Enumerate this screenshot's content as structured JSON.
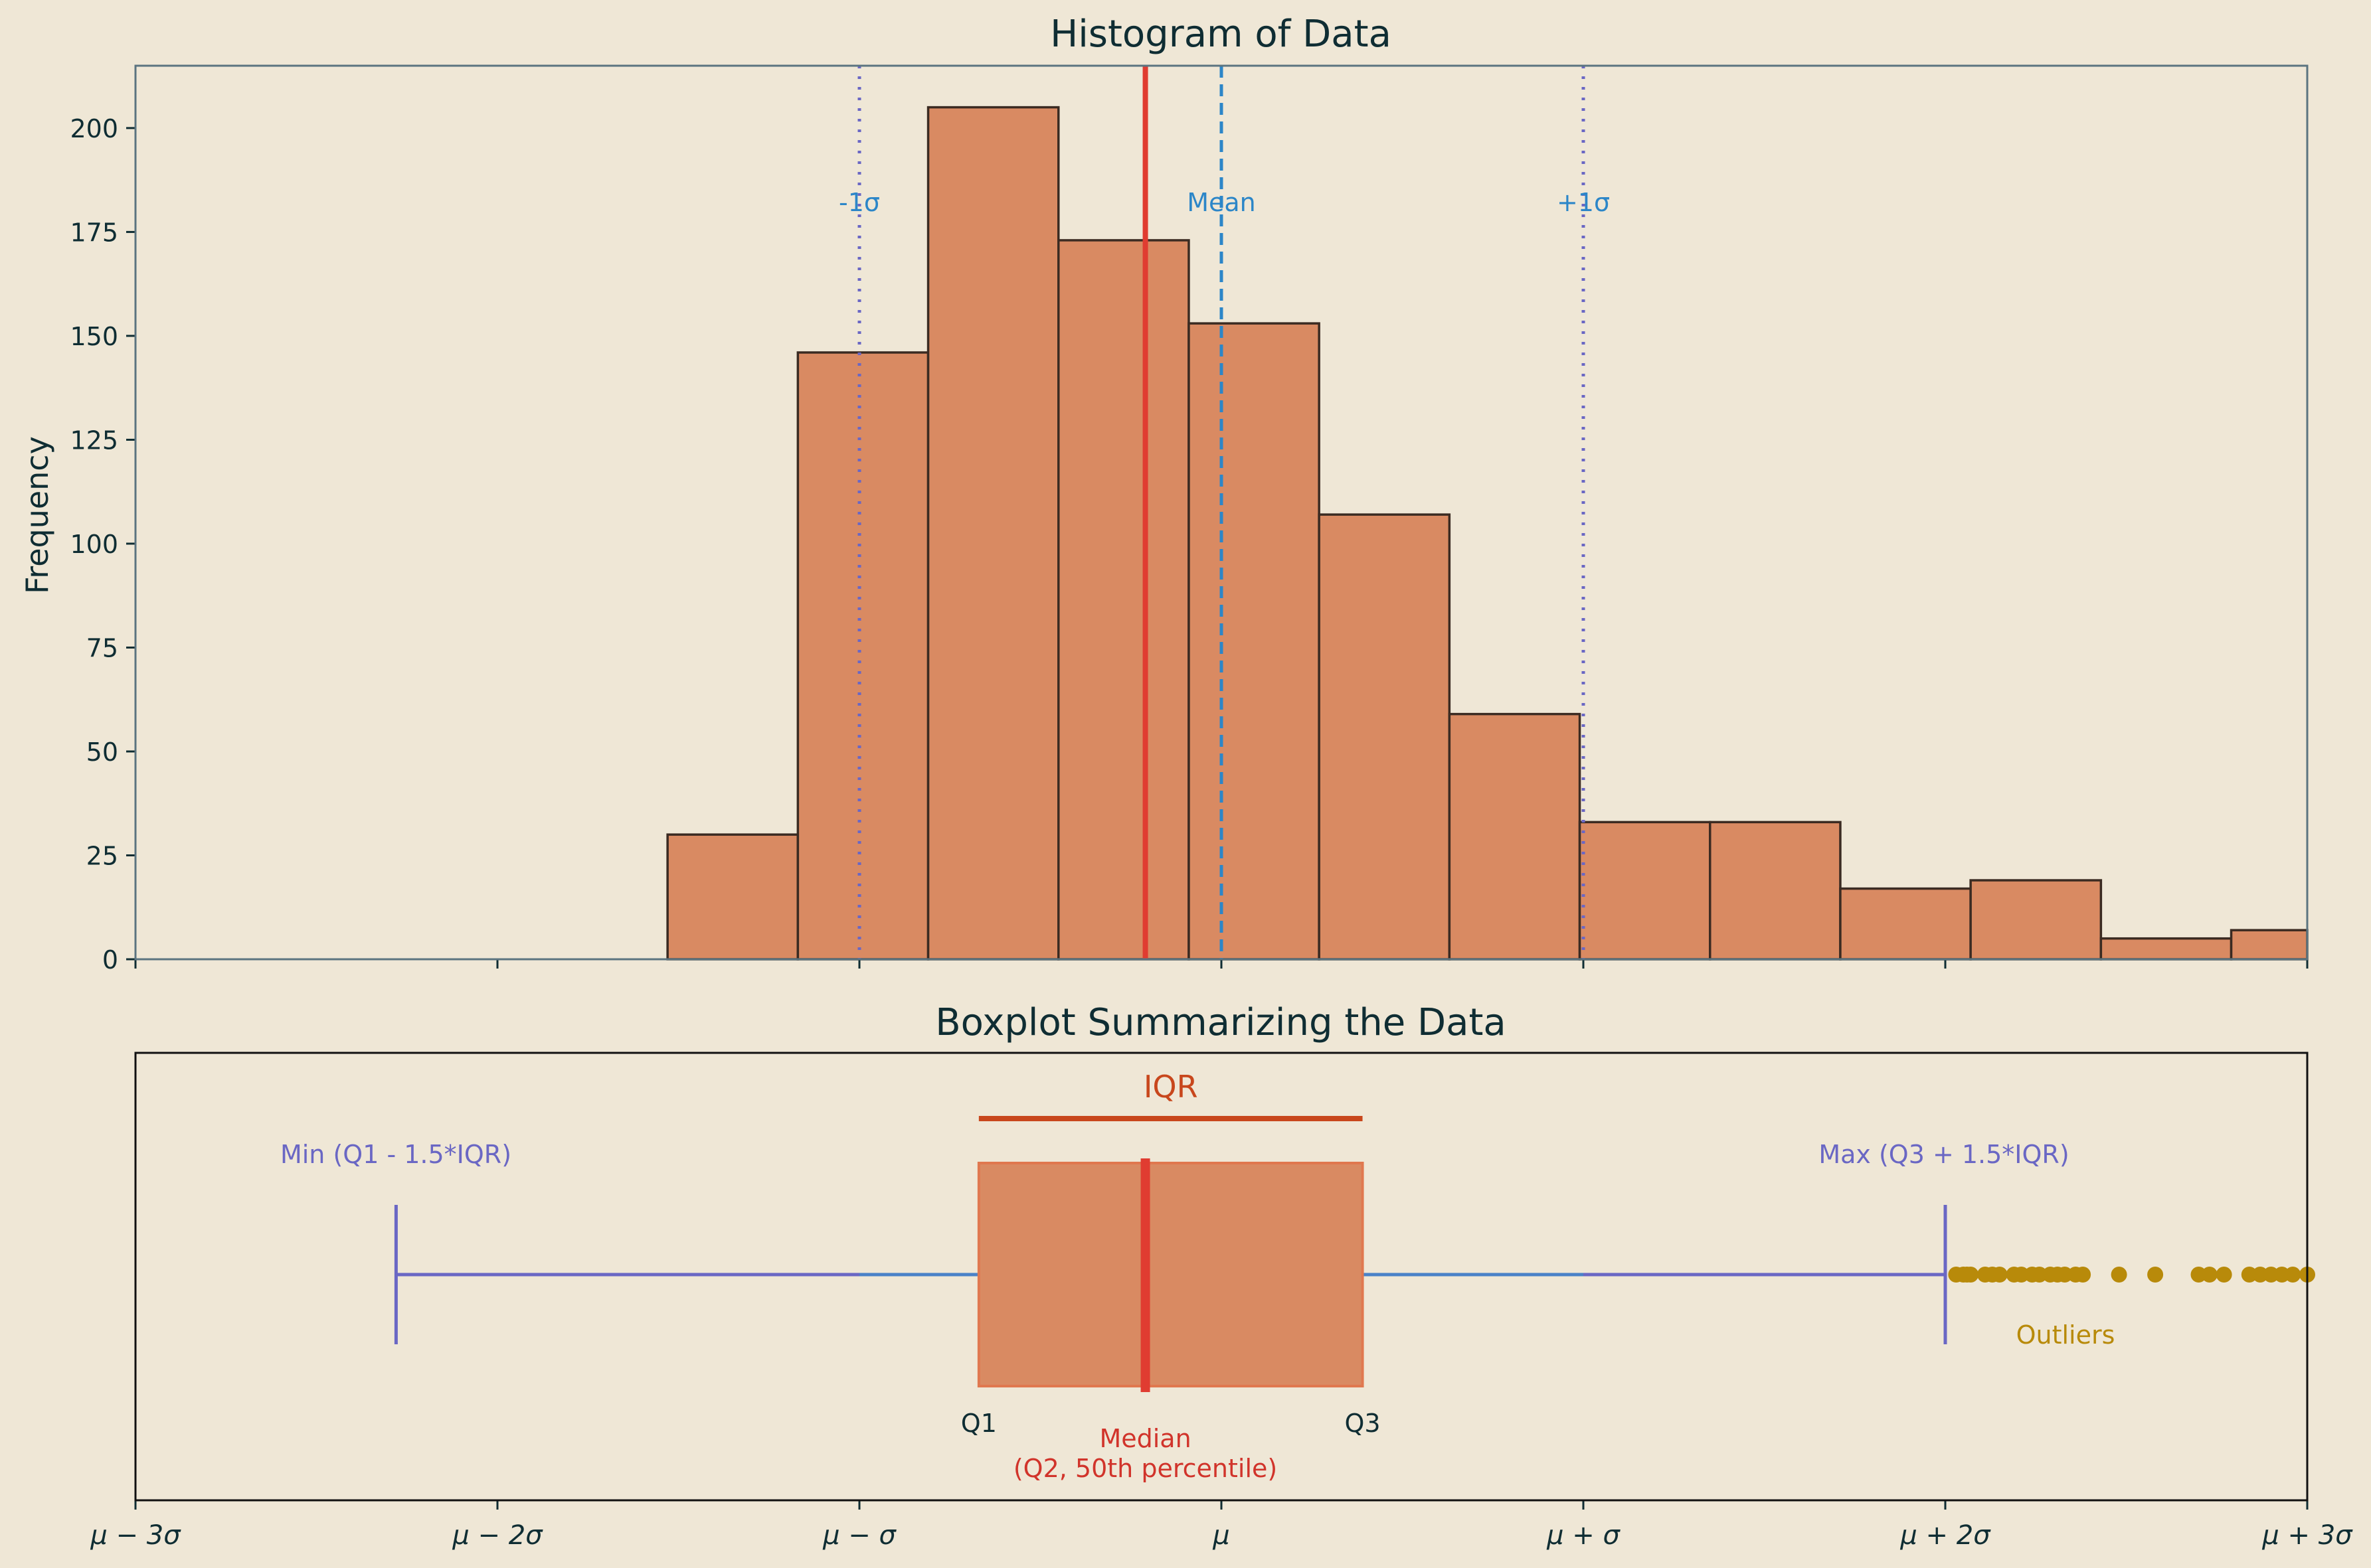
{
  "chart_data": [
    {
      "type": "bar",
      "subtype": "histogram",
      "title": "Histogram of Data",
      "xlabel": "",
      "ylabel": "Frequency",
      "xlim": [
        -3,
        3
      ],
      "ylim": [
        0,
        215
      ],
      "yticks": [
        0,
        25,
        50,
        75,
        100,
        125,
        150,
        175,
        200
      ],
      "bins": [
        {
          "x0": -1.53,
          "x1": -1.17,
          "count": 30
        },
        {
          "x0": -1.17,
          "x1": -0.81,
          "count": 146
        },
        {
          "x0": -0.81,
          "x1": -0.45,
          "count": 205
        },
        {
          "x0": -0.45,
          "x1": -0.09,
          "count": 173
        },
        {
          "x0": -0.09,
          "x1": 0.27,
          "count": 153
        },
        {
          "x0": 0.27,
          "x1": 0.63,
          "count": 107
        },
        {
          "x0": 0.63,
          "x1": 0.99,
          "count": 59
        },
        {
          "x0": 0.99,
          "x1": 1.35,
          "count": 33
        },
        {
          "x0": 1.35,
          "x1": 1.71,
          "count": 33
        },
        {
          "x0": 1.71,
          "x1": 2.07,
          "count": 17
        },
        {
          "x0": 2.07,
          "x1": 2.43,
          "count": 19
        },
        {
          "x0": 2.43,
          "x1": 2.79,
          "count": 5
        },
        {
          "x0": 2.79,
          "x1": 3.15,
          "count": 7
        }
      ],
      "reference_lines": [
        {
          "label": "-1σ",
          "x": -1,
          "style": "dotted",
          "color": "#6a67c4"
        },
        {
          "label": "Mean",
          "x": 0,
          "style": "dashed",
          "color": "#2c86c8"
        },
        {
          "label": "+1σ",
          "x": 1,
          "style": "dotted",
          "color": "#6a67c4"
        },
        {
          "label": "",
          "x": -0.21,
          "style": "solid",
          "color": "#e03c31"
        }
      ],
      "bar_color": "#d98a62",
      "edge_color": "#3b2b22"
    },
    {
      "type": "boxplot",
      "title": "Boxplot Summarizing the Data",
      "xlim": [
        -3,
        3
      ],
      "xtick_labels": [
        "μ − 3σ",
        "μ − 2σ",
        "μ − σ",
        "μ",
        "μ + σ",
        "μ + 2σ",
        "μ + 3σ"
      ],
      "xtick_values": [
        -3,
        -2,
        -1,
        0,
        1,
        2,
        3
      ],
      "whisker_low": -2.28,
      "q1": -0.67,
      "median": -0.21,
      "q3": 0.39,
      "whisker_high": 2.0,
      "outliers": [
        2.03,
        2.05,
        2.06,
        2.07,
        2.11,
        2.13,
        2.15,
        2.19,
        2.21,
        2.24,
        2.26,
        2.29,
        2.31,
        2.33,
        2.36,
        2.38,
        2.48,
        2.58,
        2.7,
        2.73,
        2.77,
        2.84,
        2.87,
        2.9,
        2.93,
        2.96,
        3.0
      ],
      "annotations": {
        "iqr": "IQR",
        "min": "Min (Q1 - 1.5*IQR)",
        "max": "Max (Q3 + 1.5*IQR)",
        "outliers": "Outliers",
        "q1": "Q1",
        "q3": "Q3",
        "median_line1": "Median",
        "median_line2": "(Q2, 50th percentile)"
      },
      "colors": {
        "box": "#d98a62",
        "box_edge": "#e0784f",
        "median": "#e03c31",
        "whisker": "#6a67c4",
        "center_line": "#4a82c8",
        "iqr": "#c8471c",
        "outlier": "#b88a0a",
        "text": "#0f2d33"
      }
    }
  ],
  "colors": {
    "background": "#efe7d6",
    "title": "#0f2d33",
    "axis_spine_top": "#5b7480",
    "axis_spine_bottom": "#111111"
  }
}
